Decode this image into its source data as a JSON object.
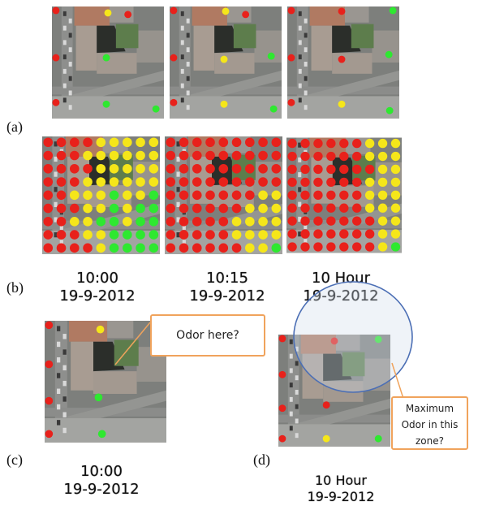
{
  "panels": {
    "a": "(a)",
    "b": "(b)",
    "c": "(c)",
    "d": "(d)"
  },
  "captions_b": [
    {
      "time": "10:00",
      "date": "19-9-2012"
    },
    {
      "time": "10:15",
      "date": "19-9-2012"
    },
    {
      "time": "10 Hour",
      "date": "19-9-2012"
    }
  ],
  "caption_c": {
    "time": "10:00",
    "date": "19-9-2012"
  },
  "caption_d": {
    "time": "10 Hour",
    "date": "19-9-2012"
  },
  "callout_c": "Odor here?",
  "callout_d": "Maximum Odor in this zone?",
  "colors": {
    "high": "#e8211b",
    "medium": "#f5e61a",
    "low": "#2ee830",
    "callout_border": "#f0a35c",
    "circle": "#4c6fb5"
  }
}
